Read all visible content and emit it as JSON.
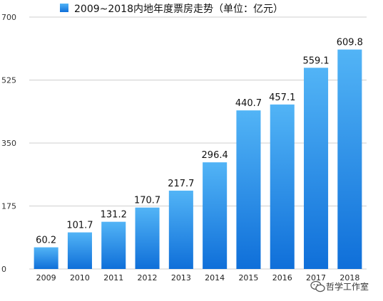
{
  "chart_data": {
    "type": "bar",
    "title": "2009~2018内地年度票房走势（单位：亿元）",
    "categories": [
      "2009",
      "2010",
      "2011",
      "2012",
      "2013",
      "2014",
      "2015",
      "2016",
      "2017",
      "2018"
    ],
    "values": [
      60.2,
      101.7,
      131.2,
      170.7,
      217.7,
      296.4,
      440.7,
      457.1,
      559.1,
      609.8
    ],
    "value_labels": [
      "60.2",
      "101.7",
      "131.2",
      "170.7",
      "217.7",
      "296.4",
      "440.7",
      "457.1",
      "559.1",
      "609.8"
    ],
    "y_ticks": [
      0,
      175,
      350,
      525,
      700
    ],
    "y_tick_labels": [
      "0",
      "175",
      "350",
      "525",
      "700"
    ],
    "ylim": [
      0,
      700
    ],
    "xlabel": "",
    "ylabel": "",
    "grid": true,
    "legend": "top",
    "colors": {
      "bar_top": "#52b4f6",
      "bar_bottom": "#0f6fd9",
      "grid": "#cfcfcf"
    }
  },
  "watermark": {
    "text": "哲学工作室",
    "icon": "wechat-icon"
  }
}
